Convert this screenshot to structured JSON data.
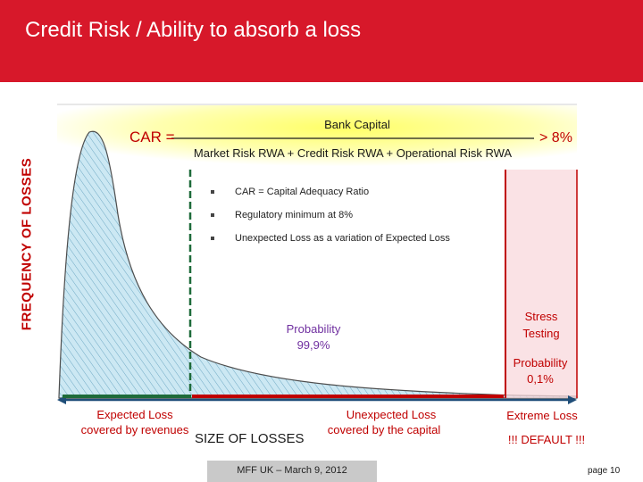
{
  "header": {
    "title": "Credit Risk / Ability to absorb a loss",
    "color": "#d7182a"
  },
  "axes": {
    "y_label": "FREQUENCY OF LOSSES",
    "x_label": "SIZE OF LOSSES"
  },
  "formula": {
    "lhs": "CAR =",
    "numerator": "Bank Capital",
    "denominator": "Market Risk RWA + Credit Risk RWA + Operational Risk RWA",
    "threshold": "> 8%"
  },
  "bullets": [
    "CAR = Capital Adequacy Ratio",
    "Regulatory minimum at 8%",
    "Unexpected Loss as a variation of Expected Loss"
  ],
  "regions": {
    "probability_main": {
      "line1": "Probability",
      "line2": "99,9%"
    },
    "stress": {
      "line1": "Stress",
      "line2": "Testing"
    },
    "probability_tail": {
      "line1": "Probability",
      "line2": "0,1%"
    },
    "expected_loss": {
      "line1": "Expected Loss",
      "line2": "covered by revenues"
    },
    "unexpected_loss": {
      "line1": "Unexpected Loss",
      "line2": "covered by the capital"
    },
    "extreme_loss": "Extreme Loss",
    "default": "!!! DEFAULT !!!"
  },
  "footer": {
    "text": "MFF UK – March 9, 2012",
    "page": "page 10"
  },
  "colors": {
    "curve_fill": "#bfe3f0",
    "accent_red": "#c00000",
    "arrow_blue": "#1f4e79",
    "el_green": "#1e6b3a",
    "formula_bg": "#ffff66",
    "probability_text": "#7030a0"
  }
}
